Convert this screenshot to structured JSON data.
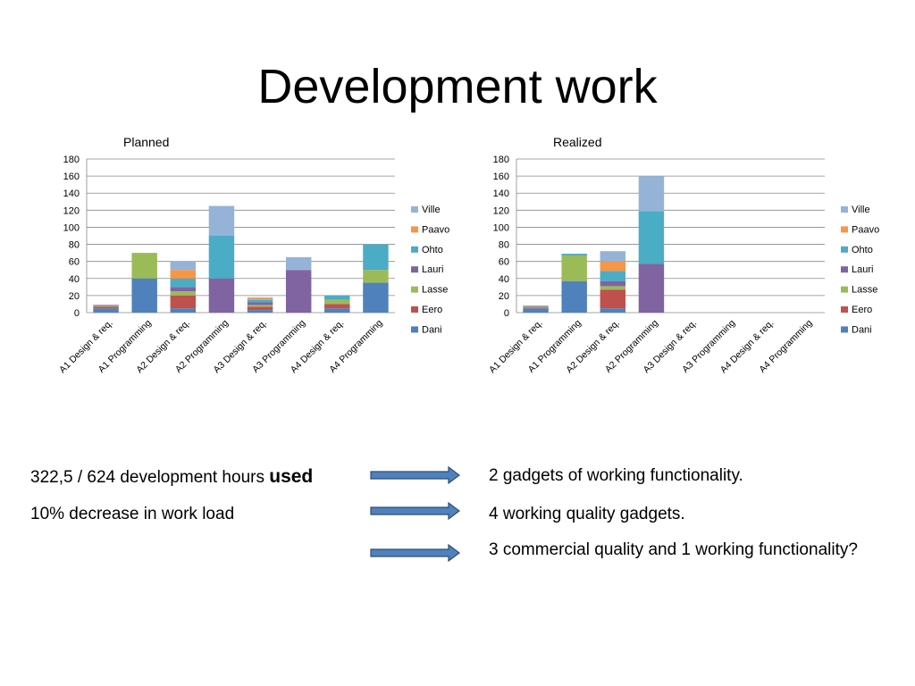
{
  "slide": {
    "title": "Development work"
  },
  "legend_colors": {
    "Ville": "#95B3D7",
    "Paavo": "#F79646",
    "Ohto": "#4BACC6",
    "Lauri": "#8064A2",
    "Lasse": "#9BBB59",
    "Eero": "#C0504D",
    "Dani": "#4F81BD"
  },
  "chart_data": [
    {
      "type": "bar",
      "stacked": true,
      "title": "Planned",
      "categories": [
        "A1 Design & req.",
        "A1 Programming",
        "A2 Design & req.",
        "A2 Programming",
        "A3 Design & req.",
        "A3 Programming",
        "A4 Design & req.",
        "A4 Programming"
      ],
      "ylim": [
        0,
        180
      ],
      "yticks": [
        0,
        20,
        40,
        60,
        80,
        100,
        120,
        140,
        160,
        180
      ],
      "grid": true,
      "legend_position": "right",
      "series": [
        {
          "name": "Dani",
          "values": [
            5,
            40,
            5,
            0,
            3,
            0,
            5,
            35
          ]
        },
        {
          "name": "Eero",
          "values": [
            2,
            0,
            15,
            0,
            4,
            0,
            5,
            0
          ]
        },
        {
          "name": "Lasse",
          "values": [
            1,
            30,
            5,
            0,
            2,
            0,
            5,
            15
          ]
        },
        {
          "name": "Lauri",
          "values": [
            1,
            0,
            5,
            40,
            3,
            50,
            0,
            0
          ]
        },
        {
          "name": "Ohto",
          "values": [
            0,
            0,
            10,
            50,
            3,
            0,
            5,
            30
          ]
        },
        {
          "name": "Paavo",
          "values": [
            0,
            0,
            10,
            0,
            2,
            0,
            0,
            0
          ]
        },
        {
          "name": "Ville",
          "values": [
            0,
            0,
            10,
            35,
            1,
            15,
            0,
            0
          ]
        }
      ]
    },
    {
      "type": "bar",
      "stacked": true,
      "title": "Realized",
      "categories": [
        "A1 Design & req.",
        "A1 Programming",
        "A2 Design & req.",
        "A2 Programming",
        "A3 Design & req.",
        "A3 Programming",
        "A4 Design & req.",
        "A4 Programming"
      ],
      "ylim": [
        0,
        180
      ],
      "yticks": [
        0,
        20,
        40,
        60,
        80,
        100,
        120,
        140,
        160,
        180
      ],
      "grid": true,
      "legend_position": "right",
      "series": [
        {
          "name": "Dani",
          "values": [
            5,
            37,
            5,
            0,
            0,
            0,
            0,
            0
          ]
        },
        {
          "name": "Eero",
          "values": [
            1,
            0,
            22,
            0,
            0,
            0,
            0,
            0
          ]
        },
        {
          "name": "Lasse",
          "values": [
            1,
            30,
            4,
            0,
            0,
            0,
            0,
            0
          ]
        },
        {
          "name": "Lauri",
          "values": [
            1,
            0,
            6,
            57,
            0,
            0,
            0,
            0
          ]
        },
        {
          "name": "Ohto",
          "values": [
            0,
            2,
            12,
            62,
            0,
            0,
            0,
            0
          ]
        },
        {
          "name": "Paavo",
          "values": [
            0,
            0,
            11,
            0,
            0,
            0,
            0,
            0
          ]
        },
        {
          "name": "Ville",
          "values": [
            0,
            0,
            12,
            41,
            0,
            0,
            0,
            0
          ]
        }
      ]
    }
  ],
  "summary": {
    "row1_left_text": "322,5 / 624 development hours ",
    "row1_left_bold": "used",
    "row1_right": "2 gadgets of working functionality.",
    "row2_left": "10% decrease in work load",
    "row2_right": "4 working quality gadgets.",
    "row3_right": "3 commercial quality and 1 working functionality?"
  }
}
